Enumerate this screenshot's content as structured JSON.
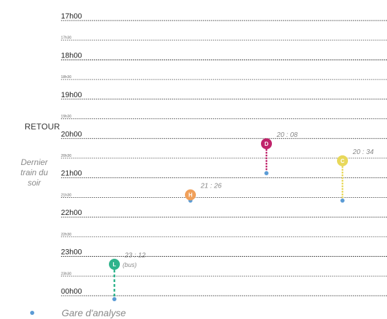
{
  "side_labels": {
    "section": "RETOUR",
    "subtitle_lines": [
      "Dernier",
      "train du",
      "soir"
    ]
  },
  "legend": {
    "label": "Gare d'analyse",
    "color": "#5b9bd5"
  },
  "chart_data": {
    "type": "timeline",
    "time_axis": {
      "start": "17h00",
      "end": "00h00",
      "ticks": [
        {
          "label": "17h00",
          "minutes": 1020,
          "major": true
        },
        {
          "label": "17h30",
          "minutes": 1050,
          "major": false
        },
        {
          "label": "18h00",
          "minutes": 1080,
          "major": true
        },
        {
          "label": "18h30",
          "minutes": 1110,
          "major": false
        },
        {
          "label": "19h00",
          "minutes": 1140,
          "major": true
        },
        {
          "label": "19h30",
          "minutes": 1170,
          "major": false
        },
        {
          "label": "20h00",
          "minutes": 1200,
          "major": true
        },
        {
          "label": "20h30",
          "minutes": 1230,
          "major": false
        },
        {
          "label": "21h00",
          "minutes": 1260,
          "major": true
        },
        {
          "label": "21h30",
          "minutes": 1290,
          "major": false
        },
        {
          "label": "22h00",
          "minutes": 1320,
          "major": true
        },
        {
          "label": "22h30",
          "minutes": 1350,
          "major": false
        },
        {
          "label": "23h00",
          "minutes": 1380,
          "major": true
        },
        {
          "label": "23h30",
          "minutes": 1410,
          "major": false
        },
        {
          "label": "00h00",
          "minutes": 1440,
          "major": true
        }
      ]
    },
    "points": [
      {
        "letter": "D",
        "time": "20 : 08",
        "minutes": 1208,
        "note": "",
        "color": "#c0246b",
        "line_style": "dotted"
      },
      {
        "letter": "C",
        "time": "20 : 34",
        "minutes": 1234,
        "note": "",
        "color": "#e8d85a",
        "line_style": "dotted"
      },
      {
        "letter": "H",
        "time": "21 : 26",
        "minutes": 1286,
        "note": "",
        "color": "#f0a05a",
        "line_style": "dotted"
      },
      {
        "letter": "L",
        "time": "23 : 12",
        "minutes": 1392,
        "note": "(bus)",
        "color": "#2fb38c",
        "line_style": "dashed"
      }
    ]
  }
}
